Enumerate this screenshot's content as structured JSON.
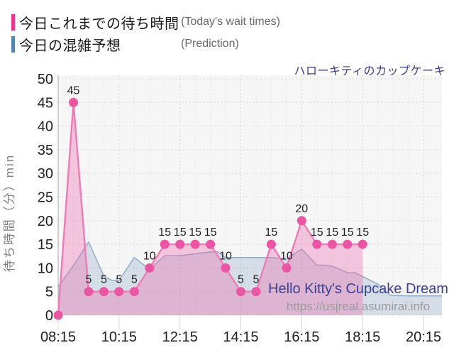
{
  "legend": {
    "items": [
      {
        "label_jp": "今日これまでの待ち時間",
        "label_en": "(Today's wait times)",
        "color": "#f1338f"
      },
      {
        "label_jp": "今日の混雑予想",
        "label_en": "(Prediction)",
        "color": "#4e86b8"
      }
    ]
  },
  "chart_title": "ハローキティのカップケーキ",
  "watermark": {
    "line1": "Hello Kitty's Cupcake Dream",
    "line2": "https://usjreal.asumirai.info"
  },
  "chart_data": {
    "type": "area",
    "title": "ハローキティのカップケーキ",
    "grid": true,
    "legend_position": "top-left",
    "x_axis": {
      "labels": [
        "08:15",
        "10:15",
        "12:15",
        "14:15",
        "16:15",
        "18:15",
        "20:15"
      ],
      "start_minutes": 0,
      "end_minutes": 720,
      "minor_step_minutes": 30,
      "major_step_minutes": 120
    },
    "y_axis": {
      "label": "待ち時間（分）min",
      "min": 0,
      "max": 50,
      "tick_step": 5,
      "ticks": [
        0,
        5,
        10,
        15,
        20,
        25,
        30,
        35,
        40,
        45,
        50
      ]
    },
    "series": [
      {
        "name": "今日これまでの待ち時間",
        "kind": "line-area-markers",
        "line_color": "#f07ab5",
        "marker_color": "#ec55a3",
        "fill_color": "rgba(238,105,173,0.35)",
        "show_point_labels": true,
        "skip_label_first_point": true,
        "times": [
          "08:15",
          "08:45",
          "09:15",
          "09:45",
          "10:15",
          "10:45",
          "11:15",
          "11:45",
          "12:15",
          "12:45",
          "13:15",
          "13:45",
          "14:15",
          "14:45",
          "15:15",
          "15:45",
          "16:15",
          "16:45",
          "17:15",
          "17:45",
          "18:15"
        ],
        "x_minutes": [
          0,
          30,
          60,
          90,
          120,
          150,
          180,
          210,
          240,
          270,
          300,
          330,
          360,
          390,
          420,
          450,
          480,
          510,
          540,
          570,
          600
        ],
        "values": [
          0,
          45,
          5,
          5,
          5,
          5,
          10,
          15,
          15,
          15,
          15,
          10,
          5,
          5,
          15,
          10,
          20,
          15,
          15,
          15,
          15
        ]
      },
      {
        "name": "今日の混雑予想",
        "kind": "line-area",
        "line_color": "#93abc9",
        "fill_color": "rgba(96,136,176,0.22)",
        "show_point_labels": false,
        "extend_to_right_edge": true,
        "times": [
          "08:15",
          "08:45",
          "09:15",
          "09:45",
          "10:00",
          "10:15",
          "10:45",
          "11:15",
          "11:45",
          "12:15",
          "12:45",
          "13:15",
          "13:30",
          "13:45",
          "14:15",
          "14:45",
          "15:15",
          "15:45",
          "16:15",
          "16:45",
          "17:00",
          "17:15",
          "17:45",
          "18:00",
          "18:15",
          "18:45",
          "19:10",
          "19:45",
          "20:15"
        ],
        "x_minutes": [
          0,
          30,
          60,
          90,
          105,
          120,
          150,
          180,
          210,
          240,
          270,
          300,
          315,
          330,
          360,
          390,
          420,
          450,
          480,
          510,
          525,
          540,
          570,
          585,
          600,
          630,
          655,
          690,
          720
        ],
        "values": [
          6,
          10.5,
          15.5,
          8.3,
          7.4,
          7.4,
          12.2,
          9.7,
          12.6,
          12.6,
          13,
          13.4,
          13.4,
          12.2,
          12.2,
          12.2,
          12.2,
          11.9,
          14,
          10.6,
          10.6,
          10.4,
          9,
          9,
          8.2,
          6.6,
          4.2,
          4.1,
          4.1
        ]
      }
    ],
    "plot_colors": {
      "plot_background": "#f6f6f6",
      "h_gridline": "#d8d8d8",
      "v_minor_gridline": "#e7e7e7",
      "v_major_gridline": "#d4d4d4",
      "y_axis_line": "#a8a8a8",
      "tick_text": "#1f1f1f",
      "point_label_text": "#1f1f1f",
      "y_title_text": "#808080",
      "watermark_title": "#3c4191",
      "watermark_url": "#9b9b9b"
    }
  }
}
